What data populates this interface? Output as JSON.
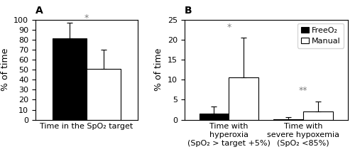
{
  "chart_data": [
    {
      "type": "bar",
      "title": "A",
      "categories": [
        "Time in the SpO₂ target"
      ],
      "series": [
        {
          "name": "FreeO₂",
          "color": "black",
          "values": [
            81
          ],
          "error_lower": [
            0
          ],
          "error_upper": [
            16
          ]
        },
        {
          "name": "Manual",
          "color": "white",
          "values": [
            51
          ],
          "error_lower": [
            0
          ],
          "error_upper": [
            19
          ]
        }
      ],
      "ylabel": "% of time",
      "ylim": [
        0,
        100
      ],
      "yticks": [
        0,
        10,
        20,
        30,
        40,
        50,
        60,
        70,
        80,
        90,
        100
      ],
      "annotations": [
        {
          "text": "*",
          "x": "Time in the SpO₂ target",
          "y": 97
        }
      ]
    },
    {
      "type": "bar",
      "title": "B",
      "categories": [
        "Time with\nhyperoxia\n(SpO₂ > target +5%)",
        "Time with\nsevere hypoxemia\n(SpO₂ <85%)"
      ],
      "series": [
        {
          "name": "FreeO₂",
          "color": "black",
          "values": [
            1.5,
            0.2
          ],
          "error_lower": [
            0,
            0
          ],
          "error_upper": [
            1.8,
            0.4
          ]
        },
        {
          "name": "Manual",
          "color": "white",
          "values": [
            10.5,
            2.1
          ],
          "error_lower": [
            0,
            0
          ],
          "error_upper": [
            10.0,
            2.4
          ]
        }
      ],
      "ylabel": "% of time",
      "ylim": [
        0,
        25
      ],
      "yticks": [
        0,
        5,
        10,
        15,
        20,
        25
      ],
      "annotations": [
        {
          "text": "*",
          "x": "Time with\nhyperoxia\n(SpO₂ > target +5%)",
          "y": 22.0
        },
        {
          "text": "**",
          "x": "Time with\nsevere hypoxemia\n(SpO₂ <85%)",
          "y": 6.2
        }
      ],
      "legend": "upper right"
    }
  ]
}
